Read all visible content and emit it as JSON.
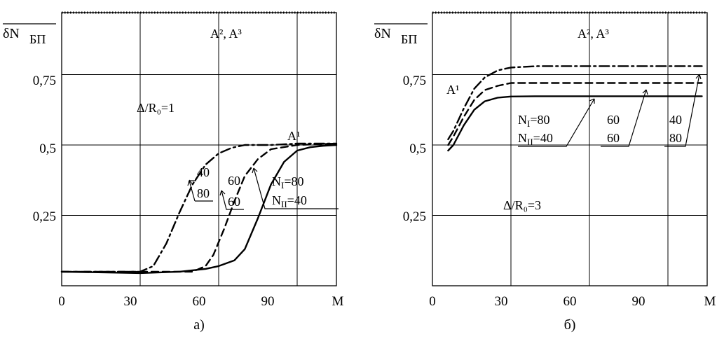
{
  "chart_data": [
    {
      "type": "line",
      "panel_label": "а)",
      "ylabel": "δN",
      "ylabel_sub": "БП",
      "xlabel": "M",
      "xlim": [
        0,
        105
      ],
      "ylim": [
        0,
        0.97
      ],
      "x_ticks": [
        "0",
        "30",
        "60",
        "90"
      ],
      "y_ticks": [
        "0,25",
        "0,5",
        "0,75"
      ],
      "grid": true,
      "annotations": {
        "a23": "A², A³",
        "a1": "A¹",
        "ratio": "Δ/R₀=1",
        "n40": "40",
        "n80": "80",
        "n60a": "60",
        "n60b": "60",
        "nI": "N",
        "nI_sub": "I",
        "nI_val": "=80",
        "nII": "N",
        "nII_sub": "II",
        "nII_val": "=40"
      },
      "series": [
        {
          "style": "dashdot",
          "x": [
            0,
            30,
            35,
            40,
            45,
            50,
            55,
            60,
            65,
            70,
            80,
            90,
            105
          ],
          "y": [
            0.05,
            0.05,
            0.07,
            0.15,
            0.26,
            0.36,
            0.43,
            0.47,
            0.49,
            0.5,
            0.5,
            0.505,
            0.505
          ]
        },
        {
          "style": "dashed",
          "x": [
            0,
            50,
            55,
            58,
            62,
            66,
            70,
            75,
            80,
            90,
            105
          ],
          "y": [
            0.05,
            0.05,
            0.07,
            0.11,
            0.2,
            0.3,
            0.39,
            0.45,
            0.485,
            0.5,
            0.505
          ]
        },
        {
          "style": "solid",
          "x": [
            0,
            30,
            45,
            55,
            60,
            66,
            70,
            75,
            80,
            85,
            90,
            95,
            100,
            105
          ],
          "y": [
            0.05,
            0.045,
            0.05,
            0.06,
            0.07,
            0.09,
            0.13,
            0.24,
            0.36,
            0.44,
            0.48,
            0.492,
            0.497,
            0.5
          ]
        }
      ]
    },
    {
      "type": "line",
      "panel_label": "б)",
      "ylabel": "δN",
      "ylabel_sub": "БП",
      "xlabel": "M",
      "xlim": [
        0,
        105
      ],
      "ylim": [
        0,
        0.97
      ],
      "x_ticks": [
        "0",
        "30",
        "60",
        "90"
      ],
      "y_ticks": [
        "0,25",
        "0,5",
        "0,75"
      ],
      "grid": true,
      "annotations": {
        "a23": "A², A³",
        "a1": "A¹",
        "ratio": "Δ/R₀=3",
        "nI": "N",
        "nI_sub": "I",
        "nI_val": "=80",
        "nII": "N",
        "nII_sub": "II",
        "nII_val": "=40",
        "c60a": "60",
        "c60b": "60",
        "c40": "40",
        "c80": "80"
      },
      "series": [
        {
          "style": "dashdot",
          "x": [
            6,
            8,
            12,
            16,
            20,
            25,
            30,
            40,
            60,
            90,
            103
          ],
          "y": [
            0.52,
            0.55,
            0.63,
            0.7,
            0.74,
            0.765,
            0.775,
            0.78,
            0.78,
            0.78,
            0.78
          ]
        },
        {
          "style": "dashed",
          "x": [
            6,
            8,
            12,
            16,
            20,
            25,
            30,
            40,
            60,
            90,
            103
          ],
          "y": [
            0.5,
            0.53,
            0.6,
            0.66,
            0.695,
            0.71,
            0.72,
            0.72,
            0.72,
            0.72,
            0.72
          ]
        },
        {
          "style": "solid",
          "x": [
            6,
            8,
            12,
            16,
            20,
            25,
            30,
            40,
            60,
            90,
            103
          ],
          "y": [
            0.48,
            0.5,
            0.57,
            0.625,
            0.655,
            0.668,
            0.672,
            0.673,
            0.673,
            0.673,
            0.673
          ]
        }
      ]
    }
  ]
}
